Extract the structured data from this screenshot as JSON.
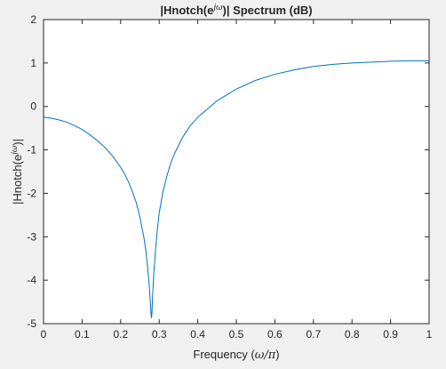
{
  "chart_data": {
    "type": "line",
    "title": {
      "prefix": "|Hnotch(e",
      "sup": "jω",
      "suffix": ")| Spectrum (dB)"
    },
    "xlabel": {
      "text": "Frequency (",
      "math": "ω/π",
      "close": ")"
    },
    "ylabel": {
      "prefix": "|Hnotch(e",
      "sup": "jω",
      "suffix": ")|"
    },
    "xlim": [
      0,
      1
    ],
    "ylim": [
      -5,
      2
    ],
    "xticks": [
      0,
      0.1,
      0.2,
      0.3,
      0.4,
      0.5,
      0.6,
      0.7,
      0.8,
      0.9,
      1
    ],
    "xtick_labels": [
      "0",
      "0.1",
      "0.2",
      "0.3",
      "0.4",
      "0.5",
      "0.6",
      "0.7",
      "0.8",
      "0.9",
      "1"
    ],
    "yticks": [
      -5,
      -4,
      -3,
      -2,
      -1,
      0,
      1,
      2
    ],
    "ytick_labels": [
      "-5",
      "-4",
      "-3",
      "-2",
      "-1",
      "0",
      "1",
      "2"
    ],
    "grid": false,
    "series": [
      {
        "color": "#0072bd",
        "x": [
          0,
          0.02,
          0.04,
          0.06,
          0.08,
          0.1,
          0.12,
          0.14,
          0.16,
          0.18,
          0.2,
          0.21,
          0.22,
          0.23,
          0.24,
          0.25,
          0.26,
          0.265,
          0.27,
          0.274,
          0.277,
          0.279,
          0.28,
          0.281,
          0.283,
          0.286,
          0.29,
          0.295,
          0.3,
          0.31,
          0.32,
          0.33,
          0.34,
          0.36,
          0.38,
          0.4,
          0.45,
          0.5,
          0.55,
          0.6,
          0.65,
          0.7,
          0.75,
          0.8,
          0.85,
          0.9,
          0.95,
          1.0
        ],
        "y": [
          -0.25,
          -0.27,
          -0.31,
          -0.36,
          -0.44,
          -0.53,
          -0.65,
          -0.79,
          -0.95,
          -1.15,
          -1.4,
          -1.55,
          -1.73,
          -1.95,
          -2.2,
          -2.55,
          -3.0,
          -3.3,
          -3.7,
          -4.1,
          -4.5,
          -4.8,
          -4.87,
          -4.78,
          -4.35,
          -3.85,
          -3.35,
          -2.85,
          -2.45,
          -1.95,
          -1.6,
          -1.3,
          -1.08,
          -0.72,
          -0.45,
          -0.25,
          0.13,
          0.4,
          0.6,
          0.74,
          0.84,
          0.92,
          0.97,
          1.0,
          1.02,
          1.04,
          1.05,
          1.05
        ]
      }
    ]
  }
}
